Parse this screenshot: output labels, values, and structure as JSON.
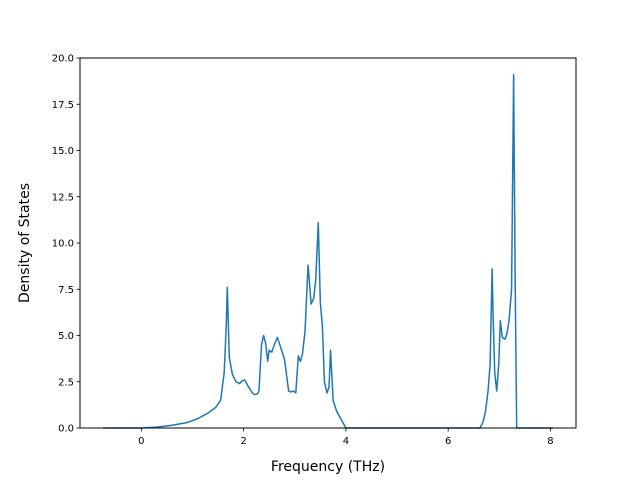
{
  "chart_data": {
    "type": "line",
    "title": "",
    "xlabel": "Frequency (THz)",
    "ylabel": "Density of States",
    "xlim": [
      -1.2,
      8.5
    ],
    "ylim": [
      0,
      20
    ],
    "x_ticks": [
      0,
      2,
      4,
      6,
      8
    ],
    "x_tick_labels": [
      "0",
      "2",
      "4",
      "6",
      "8"
    ],
    "y_ticks": [
      0,
      2.5,
      5,
      7.5,
      10,
      12.5,
      15,
      17.5,
      20
    ],
    "y_tick_labels": [
      "0.0",
      "2.5",
      "5.0",
      "7.5",
      "10.0",
      "12.5",
      "15.0",
      "17.5",
      "20.0"
    ],
    "grid": false,
    "legend": "none",
    "series": [
      {
        "color": "#1f77b4",
        "x": [
          -0.75,
          -0.4,
          0.0,
          0.3,
          0.6,
          0.9,
          1.1,
          1.3,
          1.45,
          1.55,
          1.62,
          1.66,
          1.68,
          1.72,
          1.78,
          1.85,
          1.92,
          1.97,
          2.02,
          2.1,
          2.17,
          2.22,
          2.27,
          2.3,
          2.35,
          2.39,
          2.43,
          2.47,
          2.5,
          2.55,
          2.6,
          2.66,
          2.72,
          2.8,
          2.88,
          2.93,
          2.97,
          3.02,
          3.07,
          3.11,
          3.15,
          3.2,
          3.26,
          3.32,
          3.37,
          3.41,
          3.46,
          3.5,
          3.54,
          3.58,
          3.63,
          3.67,
          3.7,
          3.75,
          3.82,
          3.9,
          4.0,
          4.5,
          5.0,
          5.5,
          6.0,
          6.4,
          6.62,
          6.68,
          6.73,
          6.78,
          6.82,
          6.86,
          6.88,
          6.91,
          6.95,
          6.99,
          7.02,
          7.06,
          7.11,
          7.15,
          7.19,
          7.24,
          7.28,
          7.31,
          7.34,
          7.36,
          7.37,
          7.4,
          7.6,
          8.0,
          8.05
        ],
        "y": [
          0.0,
          0.0,
          0.0,
          0.05,
          0.15,
          0.3,
          0.5,
          0.8,
          1.1,
          1.5,
          3.0,
          5.5,
          7.6,
          3.8,
          2.9,
          2.5,
          2.4,
          2.55,
          2.6,
          2.2,
          1.9,
          1.8,
          1.85,
          2.0,
          4.5,
          5.0,
          4.6,
          3.6,
          4.2,
          4.1,
          4.5,
          4.9,
          4.4,
          3.7,
          2.0,
          1.95,
          2.0,
          1.9,
          3.9,
          3.6,
          4.0,
          5.2,
          8.8,
          6.7,
          7.0,
          8.0,
          11.1,
          6.8,
          5.5,
          2.5,
          1.9,
          2.2,
          4.2,
          1.5,
          0.9,
          0.5,
          0.0,
          0.0,
          0.0,
          0.0,
          0.0,
          0.0,
          0.0,
          0.3,
          0.9,
          2.0,
          3.4,
          8.6,
          6.0,
          3.0,
          2.0,
          3.5,
          5.8,
          4.9,
          4.8,
          5.1,
          5.8,
          7.5,
          19.1,
          8.0,
          0.0,
          0.0,
          0.0,
          0.0,
          0.0,
          0.0,
          0.0
        ]
      }
    ]
  }
}
